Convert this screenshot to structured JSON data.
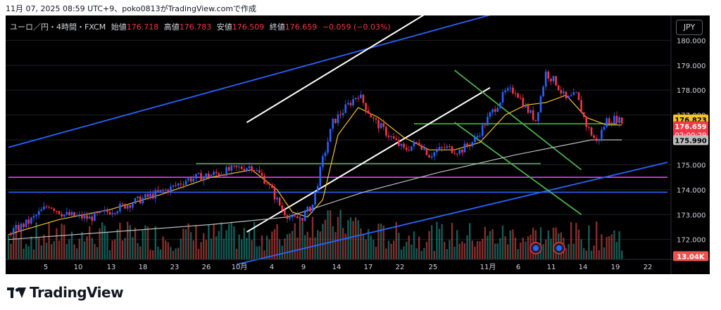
{
  "header": {
    "snapshot_text": "11月 07, 2025 08:59 UTC+9、poko0813がTradingView.comで作成"
  },
  "legend": {
    "symbol": "ユーロ／円・4時間・FXCM",
    "open_label": "始値",
    "open": "176.718",
    "high_label": "高値",
    "high": "176.783",
    "low_label": "安値",
    "low": "176.509",
    "close_label": "終値",
    "close": "176.659",
    "change": "−0.059 (−0.03%)"
  },
  "currency_button": "JPY",
  "brand": {
    "name": "TradingView"
  },
  "colors": {
    "background": "#000000",
    "candle_up": "#2962ff",
    "candle_down": "#f23645",
    "ma_short": "#f7c325",
    "ma_long": "#bdbdbd",
    "channel_white": "#ffffff",
    "trend_blue": "#2962ff",
    "green_lines": "#4caf50",
    "magenta_line": "#e040fb",
    "volume_up": "#26a69a",
    "volume_down": "#ef5350"
  },
  "chart_data": {
    "type": "candlestick",
    "symbol": "EUR/JPY",
    "timeframe": "4H",
    "ylim": [
      171.2,
      181.0
    ],
    "y_ticks": [
      "180.000",
      "179.000",
      "178.000",
      "177.000",
      "176.000",
      "175.000",
      "174.000",
      "173.000",
      "172.000"
    ],
    "x_tick_labels": [
      "5",
      "10",
      "13",
      "18",
      "23",
      "26",
      "10月",
      "4",
      "9",
      "14",
      "17",
      "22",
      "25",
      "11月",
      "6",
      "11",
      "14",
      "19",
      "22"
    ],
    "price_path": [
      {
        "i": 0,
        "p": 172.25
      },
      {
        "i": 8,
        "p": 172.7
      },
      {
        "i": 16,
        "p": 173.4
      },
      {
        "i": 22,
        "p": 173.0
      },
      {
        "i": 32,
        "p": 172.85
      },
      {
        "i": 44,
        "p": 173.3
      },
      {
        "i": 56,
        "p": 173.75
      },
      {
        "i": 64,
        "p": 174.05
      },
      {
        "i": 70,
        "p": 174.4
      },
      {
        "i": 80,
        "p": 174.6
      },
      {
        "i": 90,
        "p": 174.85
      },
      {
        "i": 96,
        "p": 174.95
      },
      {
        "i": 102,
        "p": 174.3
      },
      {
        "i": 108,
        "p": 173.2
      },
      {
        "i": 112,
        "p": 172.8
      },
      {
        "i": 116,
        "p": 172.9
      },
      {
        "i": 120,
        "p": 173.4
      },
      {
        "i": 124,
        "p": 175.2
      },
      {
        "i": 128,
        "p": 176.7
      },
      {
        "i": 134,
        "p": 177.4
      },
      {
        "i": 138,
        "p": 177.85
      },
      {
        "i": 144,
        "p": 176.8
      },
      {
        "i": 150,
        "p": 176.2
      },
      {
        "i": 156,
        "p": 175.6
      },
      {
        "i": 162,
        "p": 175.9
      },
      {
        "i": 166,
        "p": 175.4
      },
      {
        "i": 172,
        "p": 175.7
      },
      {
        "i": 178,
        "p": 175.55
      },
      {
        "i": 184,
        "p": 176.0
      },
      {
        "i": 190,
        "p": 177.0
      },
      {
        "i": 196,
        "p": 177.9
      },
      {
        "i": 200,
        "p": 178.0
      },
      {
        "i": 204,
        "p": 177.3
      },
      {
        "i": 208,
        "p": 176.8
      },
      {
        "i": 212,
        "p": 178.7
      },
      {
        "i": 216,
        "p": 178.3
      },
      {
        "i": 220,
        "p": 177.6
      },
      {
        "i": 224,
        "p": 177.8
      },
      {
        "i": 228,
        "p": 176.6
      },
      {
        "i": 232,
        "p": 175.9
      },
      {
        "i": 236,
        "p": 176.8
      },
      {
        "i": 240,
        "p": 176.85
      },
      {
        "i": 242,
        "p": 176.66
      }
    ],
    "moving_averages": [
      {
        "color": "ma_short",
        "points": [
          [
            0,
            172.2
          ],
          [
            20,
            172.8
          ],
          [
            40,
            173.2
          ],
          [
            60,
            173.8
          ],
          [
            80,
            174.5
          ],
          [
            96,
            174.8
          ],
          [
            106,
            174.0
          ],
          [
            112,
            173.1
          ],
          [
            118,
            172.9
          ],
          [
            124,
            173.6
          ],
          [
            130,
            176.2
          ],
          [
            138,
            177.3
          ],
          [
            146,
            176.9
          ],
          [
            156,
            176.1
          ],
          [
            166,
            175.6
          ],
          [
            176,
            175.6
          ],
          [
            186,
            175.9
          ],
          [
            196,
            177.0
          ],
          [
            204,
            177.4
          ],
          [
            212,
            177.5
          ],
          [
            220,
            177.8
          ],
          [
            228,
            176.9
          ],
          [
            236,
            176.6
          ],
          [
            242,
            176.6
          ]
        ]
      },
      {
        "color": "ma_long",
        "points": [
          [
            0,
            172.0
          ],
          [
            40,
            172.3
          ],
          [
            80,
            172.6
          ],
          [
            110,
            172.9
          ],
          [
            140,
            173.9
          ],
          [
            170,
            174.7
          ],
          [
            200,
            175.4
          ],
          [
            230,
            176.0
          ],
          [
            242,
            176.0
          ]
        ]
      }
    ],
    "trend_lines": [
      {
        "name": "upper-blue",
        "color": "trend_blue",
        "from": [
          0,
          175.7
        ],
        "to": [
          200,
          181.3
        ]
      },
      {
        "name": "lower-blue",
        "color": "trend_blue",
        "from": [
          90,
          171.0
        ],
        "to": [
          260,
          175.1
        ]
      },
      {
        "name": "white-upper",
        "color": "channel_white",
        "from": [
          94,
          176.7
        ],
        "to": [
          170,
          181.4
        ]
      },
      {
        "name": "white-lower",
        "color": "channel_white",
        "from": [
          94,
          172.3
        ],
        "to": [
          190,
          178.1
        ]
      },
      {
        "name": "green-upper",
        "color": "green_lines",
        "from": [
          176,
          178.8
        ],
        "to": [
          226,
          174.8
        ]
      },
      {
        "name": "green-lower",
        "color": "green_lines",
        "from": [
          176,
          176.7
        ],
        "to": [
          226,
          173.0
        ]
      }
    ],
    "horizontal_lines": [
      {
        "name": "green-top",
        "color": "green_lines",
        "price": 176.65,
        "from": 160,
        "to": 240
      },
      {
        "name": "green-mid",
        "color": "green_lines",
        "price": 175.05,
        "from": 74,
        "to": 210
      },
      {
        "name": "magenta",
        "color": "magenta_line",
        "price": 174.5,
        "from": 0,
        "to": 260
      },
      {
        "name": "blue-support",
        "color": "trend_blue",
        "price": 173.9,
        "from": 0,
        "to": 260
      }
    ],
    "price_labels": [
      {
        "text": "176.823",
        "price": 176.823,
        "bg": "#f7c325",
        "fg": "#000000"
      },
      {
        "text": "176.659",
        "sub": "02:00:29",
        "price": 176.55,
        "bg": "#f23645",
        "fg": "#ffffff"
      },
      {
        "text": "175.990",
        "price": 175.99,
        "bg": "#bdbdbd",
        "fg": "#000000"
      },
      {
        "text": "13.04K",
        "price": 171.33,
        "bg": "#ef5350",
        "fg": "#ffffff"
      }
    ]
  }
}
